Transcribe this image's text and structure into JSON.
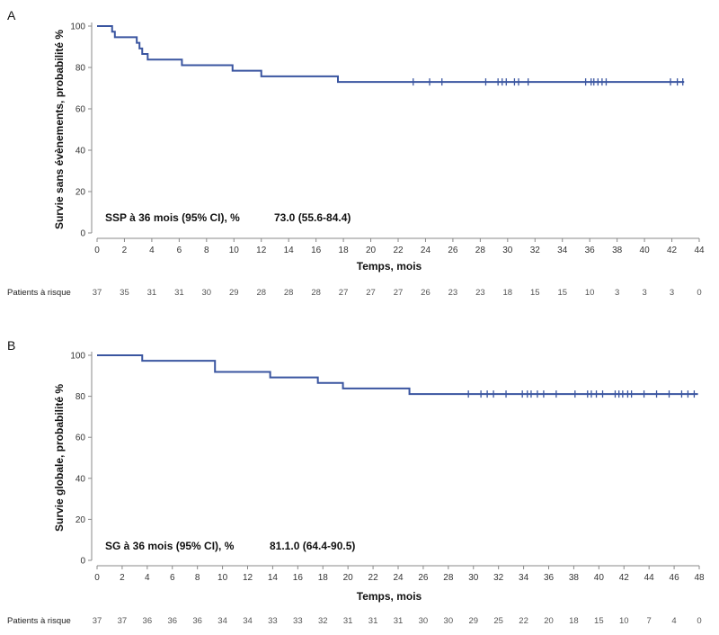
{
  "chart_data": [
    {
      "panel": "A",
      "type": "line",
      "ylabel": "Survie sans évènements, probabilité %",
      "xlabel": "Temps, mois",
      "xlim": [
        0,
        44
      ],
      "ylim": [
        0,
        100
      ],
      "xticks": [
        0,
        2,
        4,
        6,
        8,
        10,
        12,
        14,
        16,
        18,
        20,
        22,
        24,
        26,
        28,
        30,
        32,
        34,
        36,
        38,
        40,
        42,
        44
      ],
      "yticks": [
        0,
        20,
        40,
        60,
        80,
        100
      ],
      "annotation_label": "SSP à 36 mois (95% CI), %",
      "annotation_value": "73.0 (55.6-84.4)",
      "series": [
        {
          "color": "#3a55a0",
          "steps": [
            [
              0,
              100
            ],
            [
              1.1,
              97.3
            ],
            [
              1.3,
              94.6
            ],
            [
              2.9,
              91.9
            ],
            [
              3.1,
              89.2
            ],
            [
              3.3,
              86.5
            ],
            [
              3.7,
              83.8
            ],
            [
              6.2,
              81.1
            ],
            [
              9.9,
              78.4
            ],
            [
              12.0,
              75.7
            ],
            [
              17.6,
              73.0
            ],
            [
              42.9,
              73.0
            ]
          ],
          "censored_x": [
            23.1,
            24.3,
            25.2,
            28.4,
            29.3,
            29.6,
            29.9,
            30.5,
            30.8,
            31.5,
            35.7,
            36.1,
            36.3,
            36.6,
            36.9,
            37.2,
            41.9,
            42.4,
            42.8
          ]
        }
      ],
      "risk_table": {
        "label": "Patients à risque",
        "values": [
          "37",
          "35",
          "31",
          "31",
          "30",
          "29",
          "28",
          "28",
          "28",
          "27",
          "27",
          "27",
          "26",
          "23",
          "23",
          "18",
          "15",
          "15",
          "10",
          "3",
          "3",
          "3",
          "0"
        ]
      }
    },
    {
      "panel": "B",
      "type": "line",
      "ylabel": "Survie globale, probabilité %",
      "xlabel": "Temps, mois",
      "xlim": [
        0,
        48
      ],
      "ylim": [
        0,
        100
      ],
      "xticks": [
        0,
        2,
        4,
        6,
        8,
        10,
        12,
        14,
        16,
        18,
        20,
        22,
        24,
        26,
        28,
        30,
        32,
        34,
        36,
        38,
        40,
        42,
        44,
        46,
        48
      ],
      "yticks": [
        0,
        20,
        40,
        60,
        80,
        100
      ],
      "annotation_label": "SG à 36 mois (95% CI), %",
      "annotation_value": "81.1.0 (64.4-90.5)",
      "series": [
        {
          "color": "#3a55a0",
          "steps": [
            [
              0,
              100
            ],
            [
              3.6,
              97.3
            ],
            [
              9.4,
              91.9
            ],
            [
              13.8,
              89.2
            ],
            [
              17.6,
              86.5
            ],
            [
              19.6,
              83.8
            ],
            [
              24.9,
              81.1
            ],
            [
              47.9,
              81.1
            ]
          ],
          "censored_x": [
            29.6,
            30.6,
            31.1,
            31.6,
            32.6,
            33.9,
            34.3,
            34.6,
            35.1,
            35.6,
            36.6,
            38.1,
            39.1,
            39.4,
            39.8,
            40.3,
            41.3,
            41.6,
            41.9,
            42.3,
            42.6,
            43.6,
            44.6,
            45.6,
            46.6,
            47.1,
            47.6
          ]
        }
      ],
      "risk_table": {
        "label": "Patients à risque",
        "values": [
          "37",
          "37",
          "36",
          "36",
          "36",
          "34",
          "34",
          "33",
          "33",
          "32",
          "31",
          "31",
          "31",
          "30",
          "30",
          "29",
          "25",
          "22",
          "20",
          "18",
          "15",
          "10",
          "7",
          "4",
          "0"
        ]
      }
    }
  ]
}
